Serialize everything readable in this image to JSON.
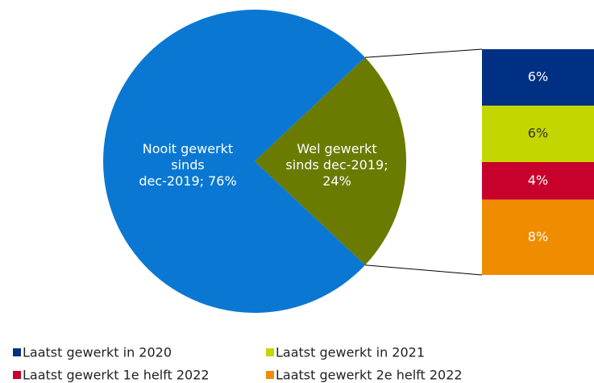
{
  "chart_data": {
    "type": "pie-of-bar",
    "values": [
      76,
      24
    ],
    "colors": [
      "#0a78d2",
      "#6b7a00"
    ],
    "value_labels": [
      [
        "Nooit gewerkt",
        "sinds",
        "dec-2019; 76%"
      ],
      [
        "Wel gewerkt",
        "sinds dec-2019;",
        "24%"
      ]
    ],
    "bar": {
      "categories": [
        "Laatst gewerkt in 2020",
        "Laatst gewerkt in 2021",
        "Laatst gewerkt 1e helft 2022",
        "Laatst gewerkt 2e helft 2022"
      ],
      "values": [
        6,
        6,
        4,
        8
      ],
      "value_labels": [
        "6%",
        "6%",
        "4%",
        "8%"
      ],
      "colors": [
        "#003083",
        "#c4d600",
        "#c8002c",
        "#f08c00"
      ],
      "label_colors": [
        "#ffffff",
        "#333333",
        "#ffffff",
        "#ffffff"
      ]
    }
  }
}
